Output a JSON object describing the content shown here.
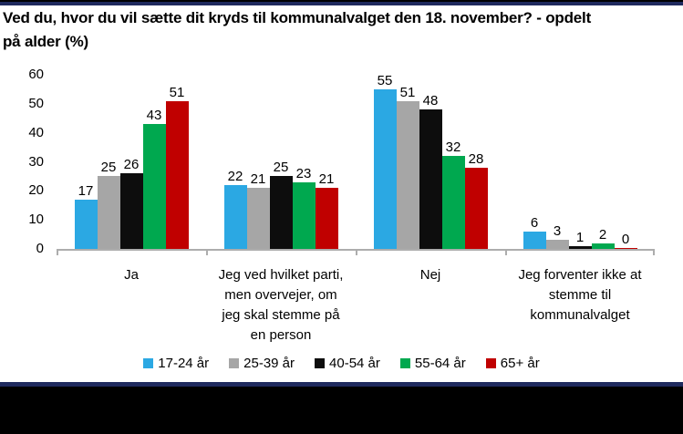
{
  "title": "Ved du, hvor du vil sætte dit kryds til kommunalvalget den 18. november? - opdelt\npå alder (%)",
  "chart_data": {
    "type": "bar",
    "categories": [
      "Ja",
      "Jeg ved hvilket parti,\nmen overvejer, om\njeg skal stemme på\nen person",
      "Nej",
      "Jeg forventer ikke at\nstemme til\nkommunalvalget"
    ],
    "series": [
      {
        "name": "17-24 år",
        "color": "#2BA8E3",
        "values": [
          17,
          22,
          55,
          6
        ]
      },
      {
        "name": "25-39 år",
        "color": "#A6A6A6",
        "values": [
          25,
          21,
          51,
          3
        ]
      },
      {
        "name": "40-54 år",
        "color": "#0D0D0D",
        "values": [
          26,
          25,
          48,
          1
        ]
      },
      {
        "name": "55-64 år",
        "color": "#00A84F",
        "values": [
          43,
          23,
          32,
          2
        ]
      },
      {
        "name": "65+ år",
        "color": "#C00000",
        "values": [
          51,
          21,
          28,
          0
        ]
      }
    ],
    "ylim": [
      0,
      60
    ],
    "yticks": [
      0,
      10,
      20,
      30,
      40,
      50,
      60
    ],
    "data_labels": true,
    "grid": false,
    "legend_position": "bottom"
  },
  "colors": {
    "border_navy": "#1F2A5E",
    "footer_black": "#000000",
    "axis_line": "#ADADAD"
  }
}
